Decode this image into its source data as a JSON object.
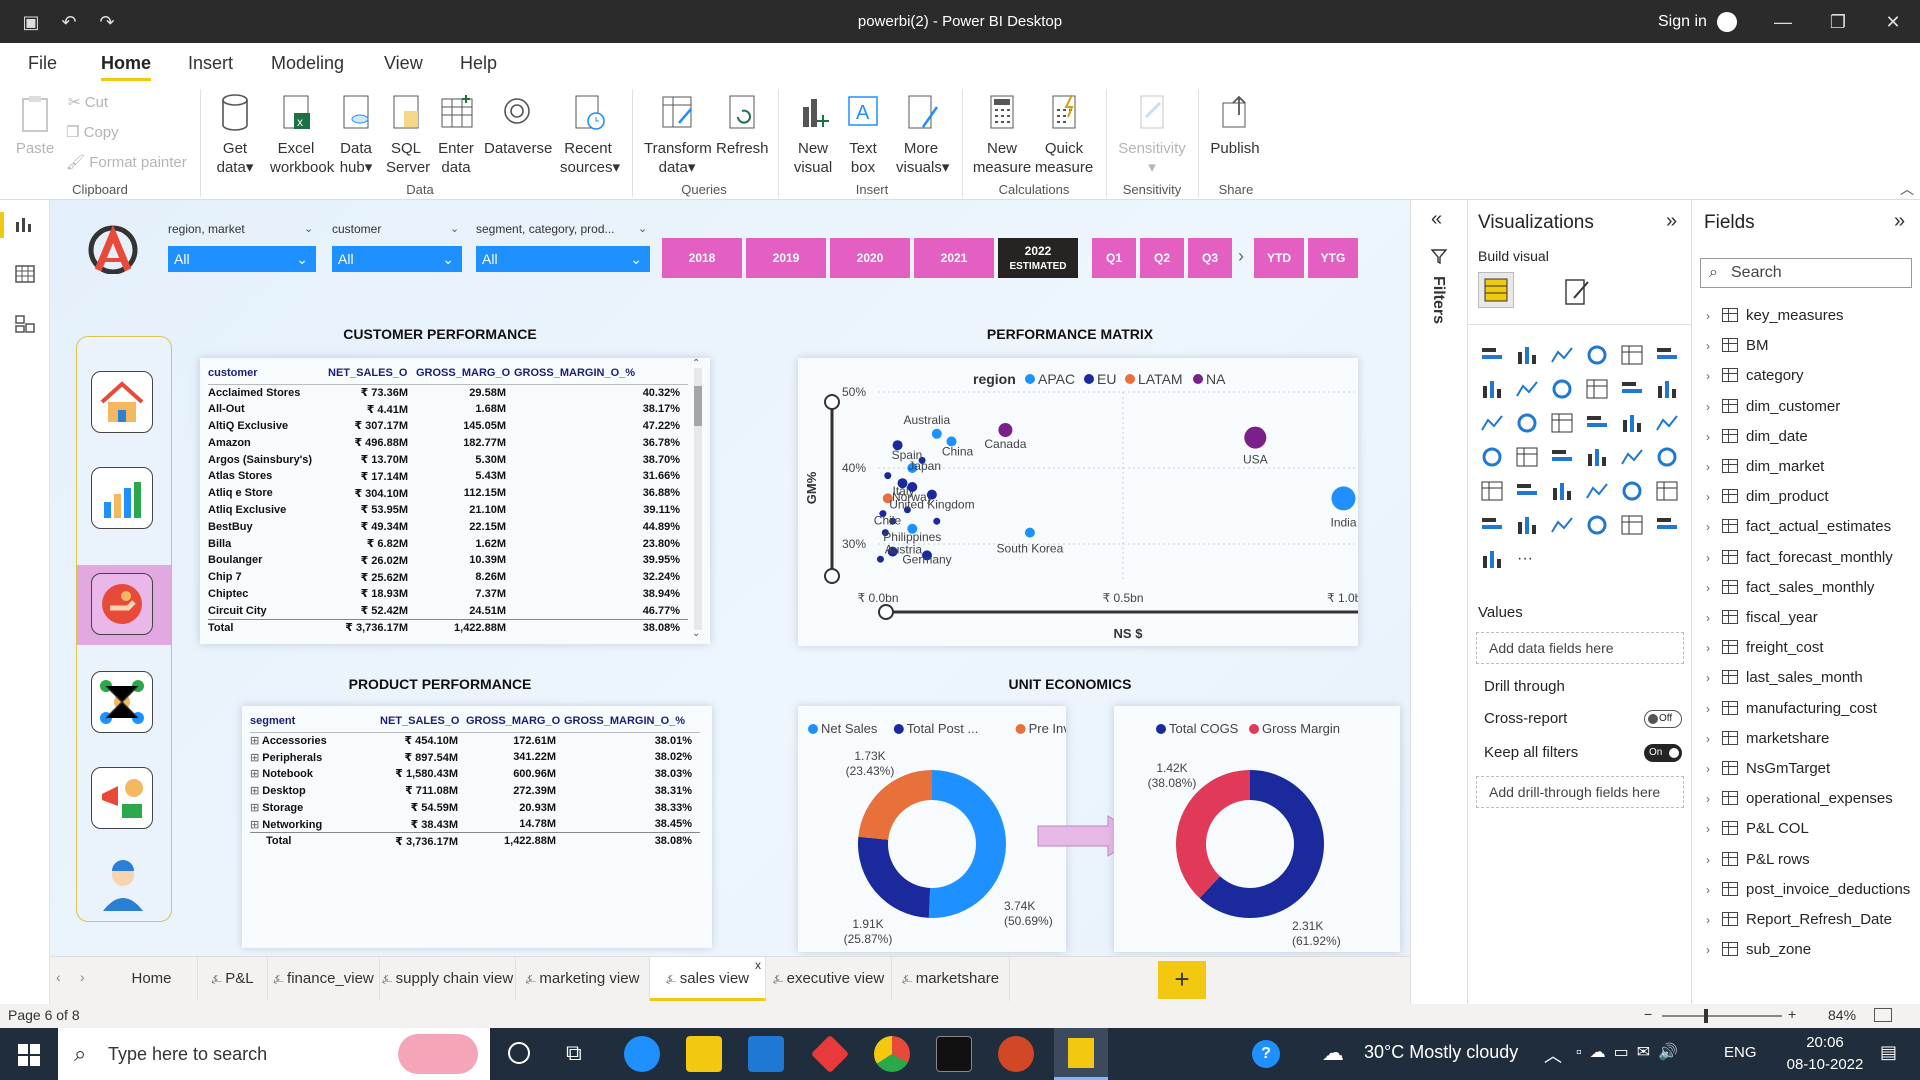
{
  "window": {
    "title": "powerbi(2) - Power BI Desktop",
    "signin": "Sign in"
  },
  "menu": [
    "File",
    "Home",
    "Insert",
    "Modeling",
    "View",
    "Help"
  ],
  "ribbon": {
    "clipboard": {
      "paste": "Paste",
      "cut": "Cut",
      "copy": "Copy",
      "format_painter": "Format painter",
      "group": "Clipboard"
    },
    "data": {
      "get_data": [
        "Get",
        "data"
      ],
      "excel": [
        "Excel",
        "workbook"
      ],
      "hub": [
        "Data",
        "hub"
      ],
      "sql": [
        "SQL",
        "Server"
      ],
      "enter": [
        "Enter",
        "data"
      ],
      "dataverse": "Dataverse",
      "recent": [
        "Recent",
        "sources"
      ],
      "group": "Data"
    },
    "queries": {
      "transform": [
        "Transform",
        "data"
      ],
      "refresh": "Refresh",
      "group": "Queries"
    },
    "insert": {
      "new_visual": [
        "New",
        "visual"
      ],
      "text_box": [
        "Text",
        "box"
      ],
      "more": [
        "More",
        "visuals"
      ],
      "group": "Insert"
    },
    "calc": {
      "new_measure": [
        "New",
        "measure"
      ],
      "quick": [
        "Quick",
        "measure"
      ],
      "group": "Calculations"
    },
    "sens": {
      "label": "Sensitivity",
      "group": "Sensitivity"
    },
    "share": {
      "publish": "Publish",
      "group": "Share"
    }
  },
  "slicers": [
    {
      "label": "region, market",
      "value": "All"
    },
    {
      "label": "customer",
      "value": "All"
    },
    {
      "label": "segment, category, prod...",
      "value": "All"
    }
  ],
  "year_buttons": [
    "2018",
    "2019",
    "2020",
    "2021"
  ],
  "year_selected": [
    "2022",
    "ESTIMATED"
  ],
  "quarter_buttons": [
    "Q1",
    "Q2",
    "Q3"
  ],
  "period_buttons": [
    "YTD",
    "YTG"
  ],
  "customer_perf": {
    "title": "CUSTOMER PERFORMANCE",
    "headers": [
      "customer",
      "NET_SALES_O",
      "GROSS_MARG_O",
      "GROSS_MARGIN_O_%"
    ],
    "rows": [
      [
        "Acclaimed Stores",
        "₹ 73.36M",
        "29.58M",
        "40.32%"
      ],
      [
        "All-Out",
        "₹ 4.41M",
        "1.68M",
        "38.17%"
      ],
      [
        "AltiQ Exclusive",
        "₹ 307.17M",
        "145.05M",
        "47.22%"
      ],
      [
        "Amazon",
        "₹ 496.88M",
        "182.77M",
        "36.78%"
      ],
      [
        "Argos (Sainsbury's)",
        "₹ 13.70M",
        "5.30M",
        "38.70%"
      ],
      [
        "Atlas Stores",
        "₹ 17.14M",
        "5.43M",
        "31.66%"
      ],
      [
        "Atliq e Store",
        "₹ 304.10M",
        "112.15M",
        "36.88%"
      ],
      [
        "Atliq Exclusive",
        "₹ 53.95M",
        "21.10M",
        "39.11%"
      ],
      [
        "BestBuy",
        "₹ 49.34M",
        "22.15M",
        "44.89%"
      ],
      [
        "Billa",
        "₹ 6.82M",
        "1.62M",
        "23.80%"
      ],
      [
        "Boulanger",
        "₹ 26.02M",
        "10.39M",
        "39.95%"
      ],
      [
        "Chip 7",
        "₹ 25.62M",
        "8.26M",
        "32.24%"
      ],
      [
        "Chiptec",
        "₹ 18.93M",
        "7.37M",
        "38.94%"
      ],
      [
        "Circuit City",
        "₹ 52.42M",
        "24.51M",
        "46.77%"
      ]
    ],
    "total": [
      "Total",
      "₹ 3,736.17M",
      "1,422.88M",
      "38.08%"
    ]
  },
  "product_perf": {
    "title": "PRODUCT PERFORMANCE",
    "headers": [
      "segment",
      "NET_SALES_O",
      "GROSS_MARG_O",
      "GROSS_MARGIN_O_%"
    ],
    "rows": [
      [
        "Accessories",
        "₹ 454.10M",
        "172.61M",
        "38.01%"
      ],
      [
        "Peripherals",
        "₹ 897.54M",
        "341.22M",
        "38.02%"
      ],
      [
        "Notebook",
        "₹ 1,580.43M",
        "600.96M",
        "38.03%"
      ],
      [
        "Desktop",
        "₹ 711.08M",
        "272.39M",
        "38.31%"
      ],
      [
        "Storage",
        "₹ 54.59M",
        "20.93M",
        "38.33%"
      ],
      [
        "Networking",
        "₹ 38.43M",
        "14.78M",
        "38.45%"
      ]
    ],
    "total": [
      "Total",
      "₹ 3,736.17M",
      "1,422.88M",
      "38.08%"
    ]
  },
  "matrix": {
    "title": "PERFORMANCE MATRIX",
    "legend_title": "region",
    "legend": [
      {
        "name": "APAC",
        "color": "#1e90ff"
      },
      {
        "name": "EU",
        "color": "#1a2a9c"
      },
      {
        "name": "LATAM",
        "color": "#e8703a"
      },
      {
        "name": "NA",
        "color": "#7b1f8a"
      }
    ],
    "ylabel": "GM%",
    "xlabel": "NS $",
    "yticks": [
      "50%",
      "40%",
      "30%"
    ],
    "xticks": [
      "₹ 0.0bn",
      "₹ 0.5bn",
      "₹ 1.0bn"
    ]
  },
  "chart_data": [
    {
      "type": "scatter",
      "title": "PERFORMANCE MATRIX",
      "xlabel": "NS $",
      "ylabel": "GM%",
      "xlim": [
        0,
        1.0
      ],
      "ylim": [
        25,
        50
      ],
      "points": [
        {
          "label": "Australia",
          "x": 0.12,
          "y": 44.5,
          "region": "APAC"
        },
        {
          "label": "China",
          "x": 0.15,
          "y": 43.5,
          "region": "APAC"
        },
        {
          "label": "Spain",
          "x": 0.04,
          "y": 43,
          "region": "EU"
        },
        {
          "label": "Canada",
          "x": 0.26,
          "y": 45,
          "region": "NA"
        },
        {
          "label": "USA",
          "x": 0.77,
          "y": 44,
          "region": "NA"
        },
        {
          "label": "India",
          "x": 0.95,
          "y": 36,
          "region": "APAC"
        },
        {
          "label": "Japan",
          "x": 0.07,
          "y": 40,
          "region": "APAC"
        },
        {
          "label": "Italy",
          "x": 0.05,
          "y": 38,
          "region": "EU"
        },
        {
          "label": "Norway",
          "x": 0.07,
          "y": 37.5,
          "region": "EU"
        },
        {
          "label": "Chile",
          "x": 0.02,
          "y": 36,
          "region": "LATAM"
        },
        {
          "label": "United Kingdom",
          "x": 0.11,
          "y": 36.5,
          "region": "EU"
        },
        {
          "label": "Philippines",
          "x": 0.07,
          "y": 32,
          "region": "APAC"
        },
        {
          "label": "South Korea",
          "x": 0.31,
          "y": 31.5,
          "region": "APAC"
        },
        {
          "label": "Austria",
          "x": 0.03,
          "y": 29,
          "region": "EU"
        },
        {
          "label": "Germany",
          "x": 0.1,
          "y": 28.5,
          "region": "EU"
        }
      ]
    },
    {
      "type": "pie",
      "title": "UNIT ECONOMICS",
      "legend": [
        "Net Sales",
        "Total Post ...",
        "Pre Invoi..."
      ],
      "slices": [
        {
          "name": "Net Sales",
          "value": 3.74,
          "label": "3.74K",
          "pct": "(50.69%)",
          "color": "#1e90ff"
        },
        {
          "name": "Total Post ...",
          "value": 1.91,
          "label": "1.91K",
          "pct": "(25.87%)",
          "color": "#1a2a9c"
        },
        {
          "name": "Pre Invoi...",
          "value": 1.73,
          "label": "1.73K",
          "pct": "(23.43%)",
          "color": "#e8703a"
        }
      ]
    },
    {
      "type": "pie",
      "legend": [
        "Total COGS",
        "Gross Margin"
      ],
      "slices": [
        {
          "name": "Total COGS",
          "value": 2.31,
          "label": "2.31K",
          "pct": "(61.92%)",
          "color": "#1a2a9c"
        },
        {
          "name": "Gross Margin",
          "value": 1.42,
          "label": "1.42K",
          "pct": "(38.08%)",
          "color": "#e03a58"
        }
      ]
    }
  ],
  "pages": [
    "Home",
    "P&L",
    "finance_view",
    "supply chain view",
    "marketing view",
    "sales view",
    "executive view",
    "marketshare"
  ],
  "active_page": "sales view",
  "filters_label": "Filters",
  "viz_pane": {
    "title": "Visualizations",
    "build": "Build visual",
    "values": "Values",
    "add_fields": "Add data fields here",
    "drill": "Drill through",
    "cross": "Cross-report",
    "cross_state": "Off",
    "keep": "Keep all filters",
    "keep_state": "On",
    "add_drill": "Add drill-through fields here"
  },
  "fields_pane": {
    "title": "Fields",
    "search": "Search",
    "items": [
      "key_measures",
      "BM",
      "category",
      "dim_customer",
      "dim_date",
      "dim_market",
      "dim_product",
      "fact_actual_estimates",
      "fact_forecast_monthly",
      "fact_sales_monthly",
      "fiscal_year",
      "freight_cost",
      "last_sales_month",
      "manufacturing_cost",
      "marketshare",
      "NsGmTarget",
      "operational_expenses",
      "P&L COL",
      "P&L rows",
      "post_invoice_deductions",
      "Report_Refresh_Date",
      "sub_zone"
    ]
  },
  "status": {
    "page": "Page 6 of 8",
    "zoom": "84%"
  },
  "taskbar": {
    "search": "Type here to search",
    "weather": "30°C  Mostly cloudy",
    "lang": "ENG",
    "time": "20:06",
    "date": "08-10-2022"
  },
  "colors": {
    "accent": "#f2c811",
    "pink": "#e35fc1",
    "blue": "#1e90ff",
    "navy": "#1a2a9c"
  }
}
